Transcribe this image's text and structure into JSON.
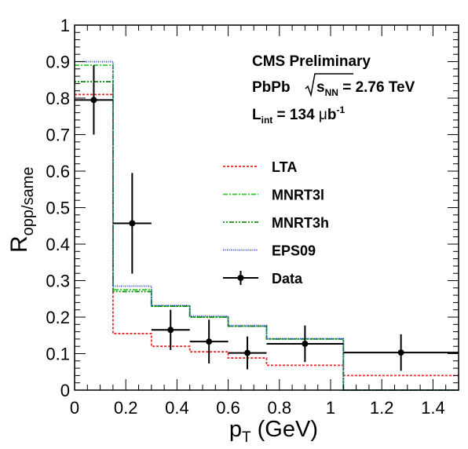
{
  "chart_data": {
    "type": "step-histogram",
    "xlabel": "p",
    "xlabel_sub": "T",
    "xlabel_unit": " (GeV)",
    "ylabel": "R",
    "ylabel_sub": "opp/same",
    "xlim": [
      0,
      1.5
    ],
    "ylim": [
      0,
      1.0
    ],
    "xticks": [
      "0",
      "0.2",
      "0.4",
      "0.6",
      "0.8",
      "1",
      "1.2",
      "1.4"
    ],
    "xtick_values": [
      0,
      0.2,
      0.4,
      0.6,
      0.8,
      1.0,
      1.2,
      1.4
    ],
    "yticks": [
      "0",
      "0.1",
      "0.2",
      "0.3",
      "0.4",
      "0.5",
      "0.6",
      "0.7",
      "0.8",
      "0.9",
      "1"
    ],
    "ytick_values": [
      0,
      0.1,
      0.2,
      0.3,
      0.4,
      0.5,
      0.6,
      0.7,
      0.8,
      0.9,
      1.0
    ],
    "annotations": {
      "line1": "CMS Preliminary",
      "line2_prefix": "PbPb ",
      "line2_s": "s",
      "line2_sub": "NN",
      "line2_suffix": " = 2.76 TeV",
      "line3_L": "L",
      "line3_sub": "int",
      "line3_value": " = 134 ",
      "line3_mu": "μ",
      "line3_b": "b",
      "line3_sup": "-1"
    },
    "legend": [
      {
        "key": "lta",
        "label": "LTA",
        "color": "#e8292b",
        "dash": "3,2"
      },
      {
        "key": "mnrt3l",
        "label": "MNRT3l",
        "color": "#33cc33",
        "dash": "6,2,2,2"
      },
      {
        "key": "mnrt3h",
        "label": "MNRT3h",
        "color": "#1a8c1a",
        "dash": "2,2,2,2,6,2"
      },
      {
        "key": "eps09",
        "label": "EPS09",
        "color": "#1f3fbf",
        "dash": "1,1.5"
      },
      {
        "key": "data",
        "label": "Data",
        "color": "#000000",
        "dash": ""
      }
    ],
    "series": [
      {
        "key": "lta",
        "name": "LTA",
        "kind": "step",
        "edges": [
          0,
          0.15,
          0.3,
          0.45,
          0.6,
          0.75,
          1.05,
          1.5
        ],
        "values": [
          0.81,
          0.155,
          0.12,
          0.105,
          0.088,
          0.068,
          0.04
        ]
      },
      {
        "key": "mnrt3l",
        "name": "MNRT3l",
        "kind": "step",
        "edges": [
          0,
          0.15,
          0.3,
          0.45,
          0.6,
          0.75,
          1.05,
          1.5
        ],
        "values": [
          0.89,
          0.275,
          0.23,
          0.2,
          0.175,
          0.14,
          0.0
        ]
      },
      {
        "key": "mnrt3h",
        "name": "MNRT3h",
        "kind": "step",
        "edges": [
          0,
          0.15,
          0.3,
          0.45,
          0.6,
          0.75,
          1.05,
          1.5
        ],
        "values": [
          0.845,
          0.27,
          0.23,
          0.2,
          0.175,
          0.14,
          0.0
        ]
      },
      {
        "key": "eps09",
        "name": "EPS09",
        "kind": "step",
        "edges": [
          0,
          0.15,
          0.3,
          0.45,
          0.6,
          0.75,
          1.05,
          1.5
        ],
        "values": [
          0.9,
          0.285,
          0.232,
          0.203,
          0.177,
          0.141,
          0.0
        ]
      },
      {
        "key": "data",
        "name": "Data",
        "kind": "points",
        "x": [
          0.075,
          0.225,
          0.375,
          0.525,
          0.675,
          0.9,
          1.275
        ],
        "xerr": [
          0.075,
          0.075,
          0.075,
          0.075,
          0.075,
          0.15,
          0.225
        ],
        "y": [
          0.795,
          0.457,
          0.165,
          0.133,
          0.102,
          0.127,
          0.103
        ],
        "yerr": [
          0.095,
          0.138,
          0.055,
          0.06,
          0.045,
          0.05,
          0.05
        ]
      }
    ]
  }
}
